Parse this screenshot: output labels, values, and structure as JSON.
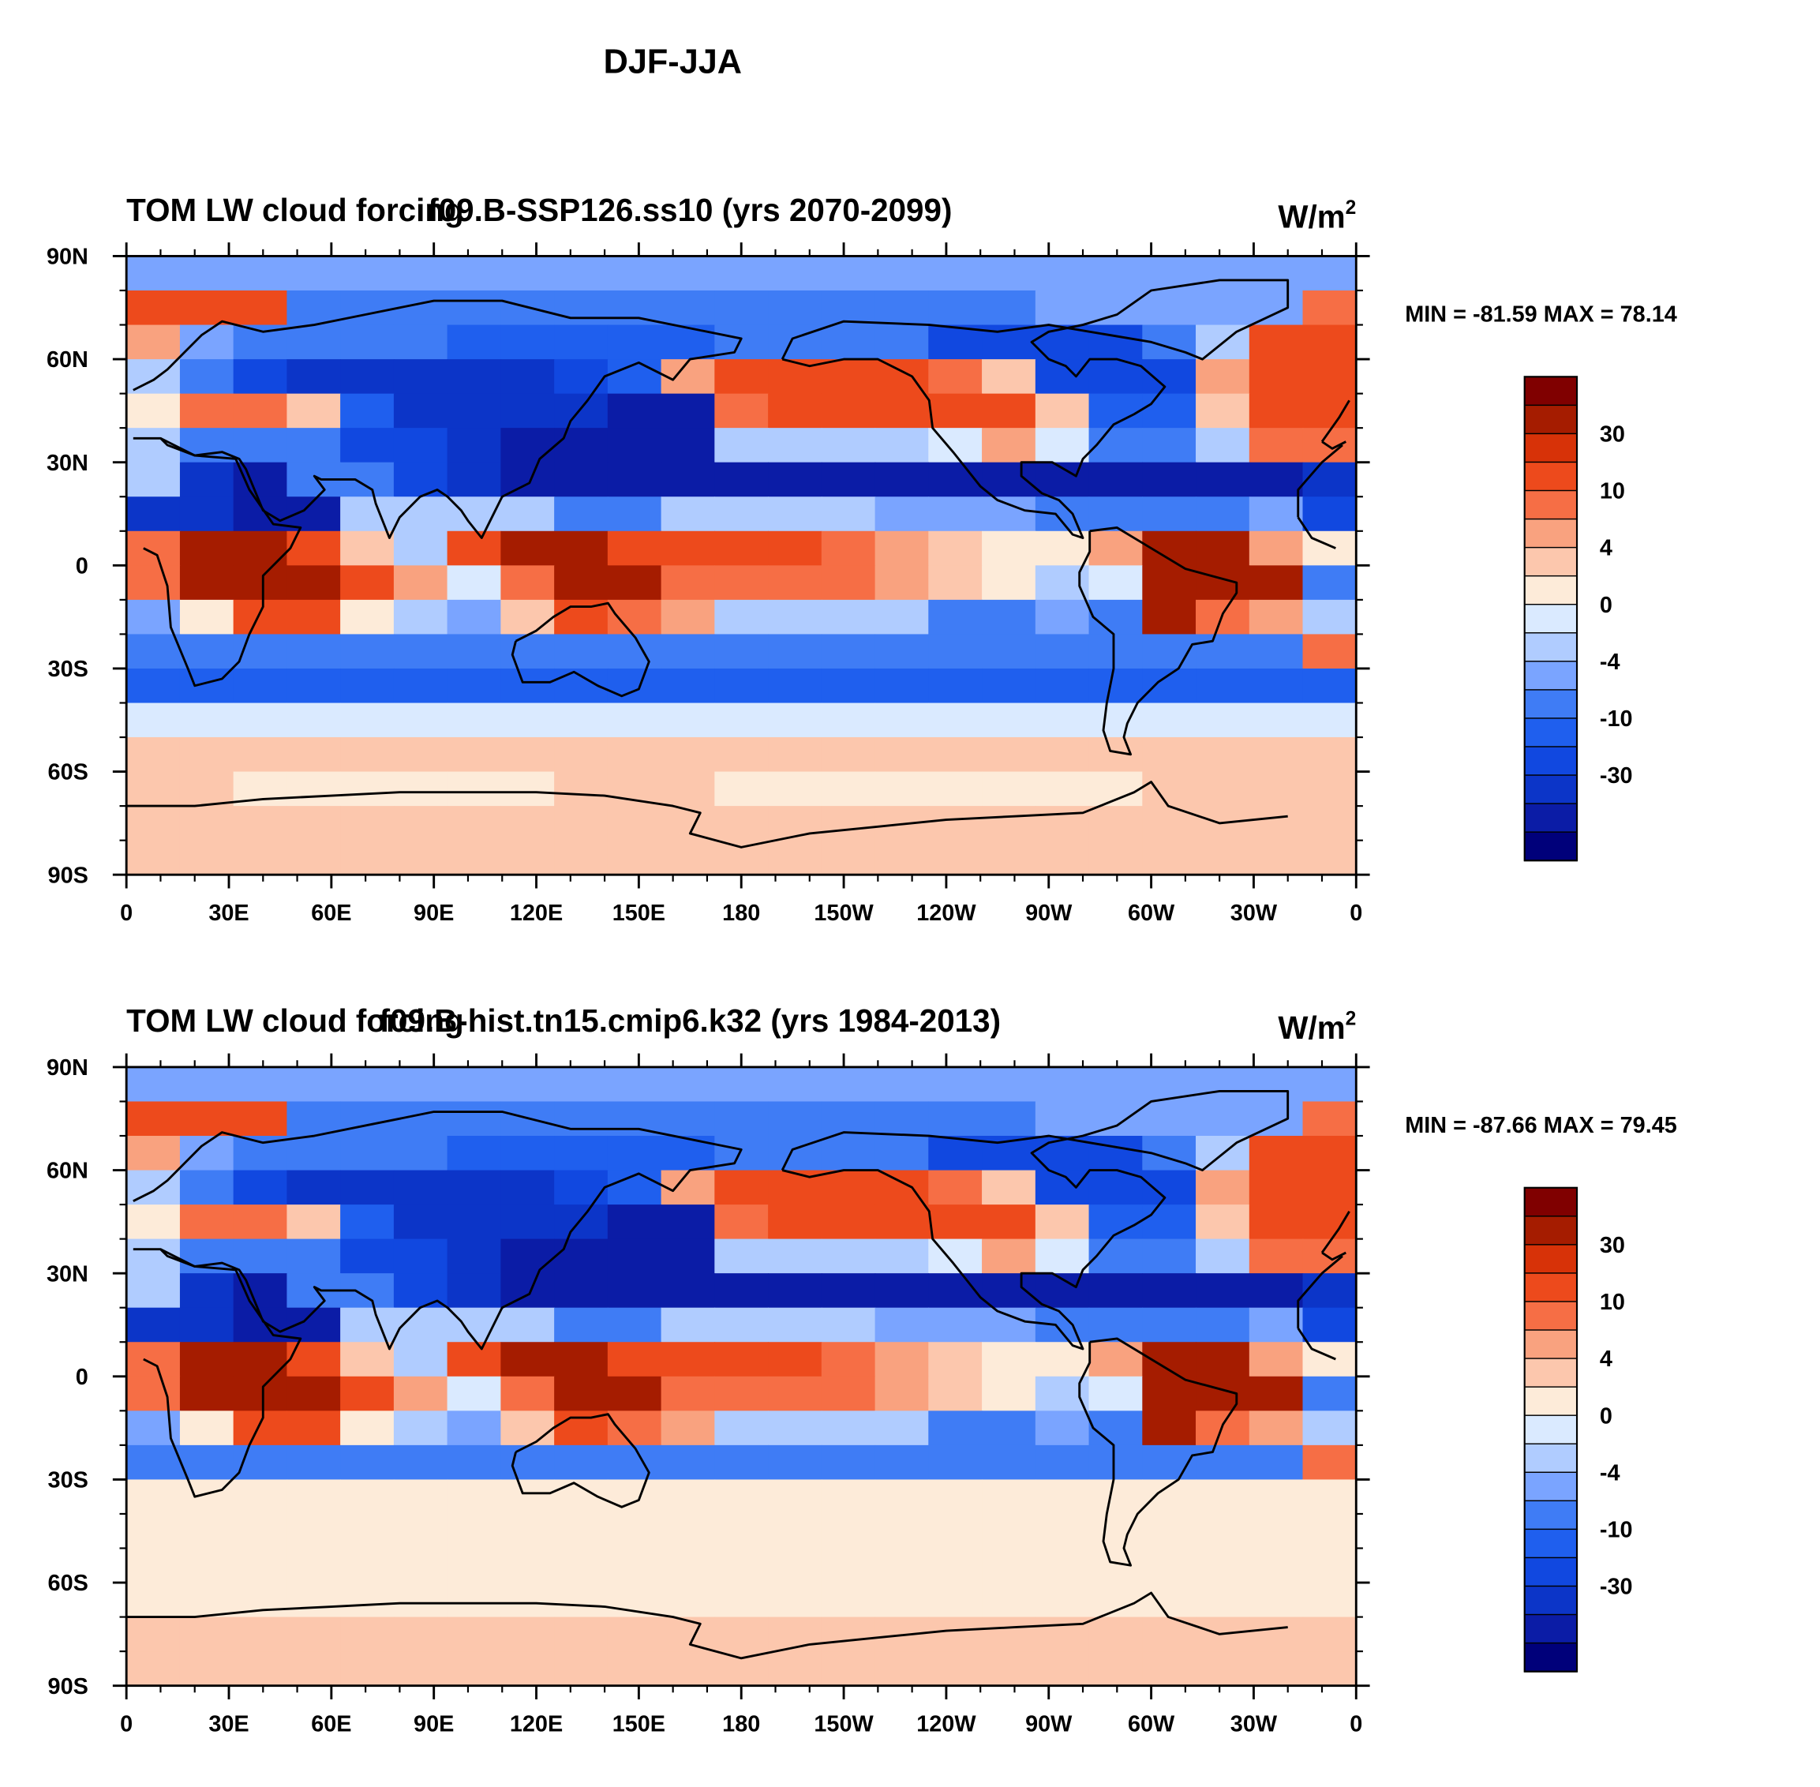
{
  "figure": {
    "title": "DJF-JJA"
  },
  "colors": {
    "levels": [
      "#00007a",
      "#0b1ca6",
      "#0c35c8",
      "#1148e0",
      "#1f5fee",
      "#3f7cf5",
      "#7aa4ff",
      "#b0ccff",
      "#daeaff",
      "#fdebd9",
      "#fcc7ad",
      "#f9a27f",
      "#f66e45",
      "#ed4a1c",
      "#d73208",
      "#a51c00",
      "#800000"
    ],
    "coast": "#000000"
  },
  "chart_data": [
    {
      "type": "heatmap",
      "name": "top-panel",
      "left_title": "TOM LW cloud forcing",
      "center_title": "f09.B-SSP126.ss10 (yrs 2070-2099)",
      "units_base": "W/m",
      "units_exp": "2",
      "min_max": "MIN = -81.59 MAX =  78.14",
      "x_ticks": [
        "0",
        "30E",
        "60E",
        "90E",
        "120E",
        "150E",
        "180",
        "150W",
        "120W",
        "90W",
        "60W",
        "30W",
        "0"
      ],
      "y_ticks": [
        "90N",
        "60N",
        "30N",
        "0",
        "30S",
        "60S",
        "90S"
      ],
      "xlim": [
        0,
        360
      ],
      "ylim": [
        -90,
        90
      ],
      "colorbar_labels": [
        "30",
        "10",
        "4",
        "0",
        "-4",
        "-10",
        "-30"
      ]
    },
    {
      "type": "heatmap",
      "name": "bottom-panel",
      "left_title": "TOM LW cloud forcing",
      "center_title": "f09.B-hist.tn15.cmip6.k32 (yrs 1984-2013)",
      "units_base": "W/m",
      "units_exp": "2",
      "min_max": "MIN = -87.66 MAX =  79.45",
      "x_ticks": [
        "0",
        "30E",
        "60E",
        "90E",
        "120E",
        "150E",
        "180",
        "150W",
        "120W",
        "90W",
        "60W",
        "30W",
        "0"
      ],
      "y_ticks": [
        "90N",
        "60N",
        "30N",
        "0",
        "30S",
        "60S",
        "90S"
      ],
      "xlim": [
        0,
        360
      ],
      "ylim": [
        -90,
        90
      ],
      "colorbar_labels": [
        "30",
        "10",
        "4",
        "0",
        "-4",
        "-10",
        "-30"
      ]
    }
  ]
}
